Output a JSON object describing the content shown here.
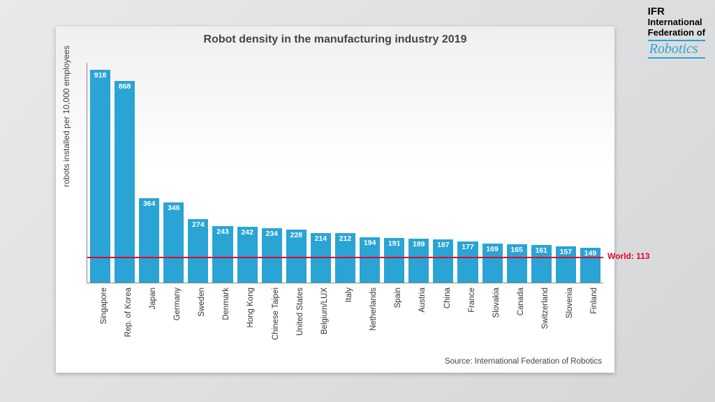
{
  "logo": {
    "abbrev": "IFR",
    "l1": "International",
    "l2": "Federation of",
    "robotics": "Robotics"
  },
  "chart": {
    "type": "bar",
    "title": "Robot density in the manufacturing industry 2019",
    "ylabel": "robots installed per 10,000 employees",
    "ymax": 950,
    "bar_color": "#2aa4d4",
    "value_text_color": "#ffffff",
    "axis_color": "#888888",
    "title_color": "#444444",
    "title_fontsize": 16,
    "label_fontsize": 12,
    "xlabel_fontsize": 11.5,
    "value_fontsize": 10.5,
    "background": "#ffffff",
    "world_line": {
      "value": 113,
      "label": "World: 113",
      "color": "#e4002b"
    },
    "categories": [
      "Singapore",
      "Rep. of Korea",
      "Japan",
      "Germany",
      "Sweden",
      "Denmark",
      "Hong Kong",
      "Chinese Taipei",
      "United States",
      "Belgium/LUX",
      "Italy",
      "Netherlands",
      "Spain",
      "Austria",
      "China",
      "France",
      "Slovakia",
      "Canada",
      "Switzerland",
      "Slovenia",
      "Finland"
    ],
    "values": [
      918,
      868,
      364,
      346,
      274,
      243,
      242,
      234,
      228,
      214,
      212,
      194,
      191,
      189,
      187,
      177,
      169,
      165,
      161,
      157,
      149
    ],
    "source": "Source: International Federation of Robotics"
  }
}
